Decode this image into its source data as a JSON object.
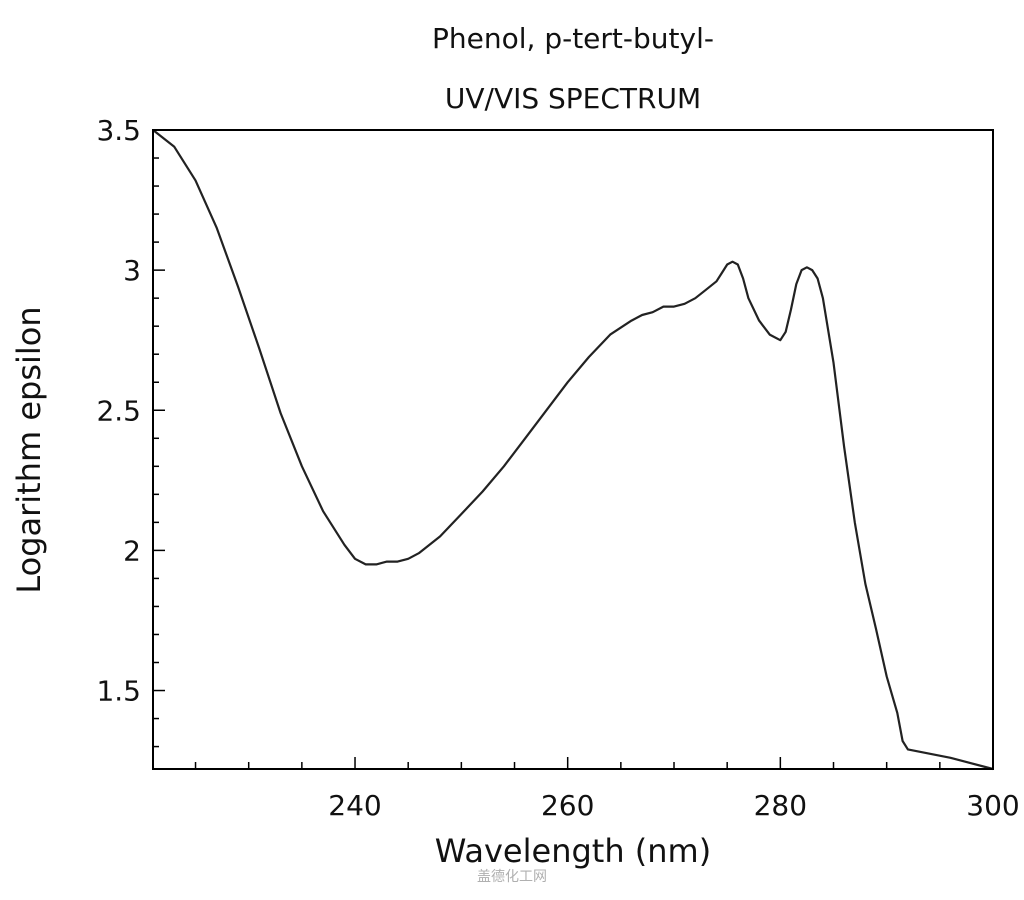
{
  "watermark": "盖德化工网",
  "chart_data": {
    "type": "line",
    "title": "Phenol, p-tert-butyl-",
    "subtitle": "UV/VIS SPECTRUM",
    "xlabel": "Wavelength (nm)",
    "ylabel": "Logarithm epsilon",
    "xlim": [
      221,
      300
    ],
    "ylim": [
      1.22,
      3.5
    ],
    "xticks": [
      "240",
      "260",
      "280",
      "300"
    ],
    "xtick_values": [
      240,
      260,
      280,
      300
    ],
    "yticks": [
      "1.5",
      "2",
      "2.5",
      "3",
      "3.5"
    ],
    "ytick_values": [
      1.5,
      2,
      2.5,
      3,
      3.5
    ],
    "grid": false,
    "line_color": "#222222",
    "series": [
      {
        "x": [
          221,
          223,
          225,
          227,
          229,
          231,
          233,
          235,
          237,
          239,
          240,
          241,
          242,
          243,
          244,
          245,
          246,
          248,
          250,
          252,
          254,
          256,
          258,
          260,
          262,
          264,
          266,
          267,
          268,
          269,
          270,
          271,
          272,
          273,
          274,
          274.5,
          275,
          275.5,
          276,
          276.5,
          277,
          278,
          279,
          280,
          280.5,
          281,
          281.5,
          282,
          282.5,
          283,
          283.5,
          284,
          285,
          286,
          287,
          288,
          289,
          290,
          291,
          291.5,
          292,
          296,
          300
        ],
        "y": [
          3.5,
          3.44,
          3.32,
          3.15,
          2.94,
          2.72,
          2.49,
          2.3,
          2.14,
          2.02,
          1.97,
          1.95,
          1.95,
          1.96,
          1.96,
          1.97,
          1.99,
          2.05,
          2.13,
          2.21,
          2.3,
          2.4,
          2.5,
          2.6,
          2.69,
          2.77,
          2.82,
          2.84,
          2.85,
          2.87,
          2.87,
          2.88,
          2.9,
          2.93,
          2.96,
          2.99,
          3.02,
          3.03,
          3.02,
          2.97,
          2.9,
          2.82,
          2.77,
          2.75,
          2.78,
          2.86,
          2.95,
          3.0,
          3.01,
          3.0,
          2.97,
          2.9,
          2.67,
          2.37,
          2.1,
          1.88,
          1.72,
          1.55,
          1.42,
          1.32,
          1.29,
          1.26,
          1.22
        ]
      }
    ]
  }
}
